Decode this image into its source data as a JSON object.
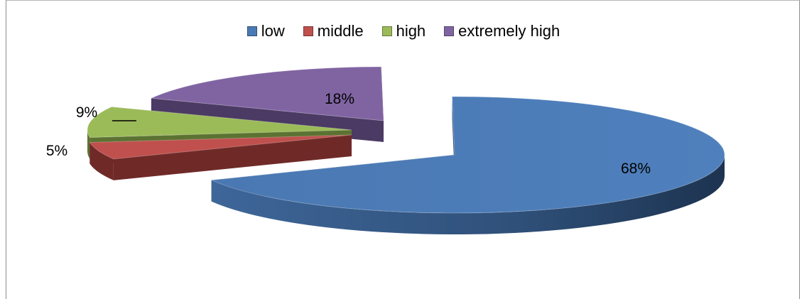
{
  "chart_data": {
    "type": "pie",
    "variant": "3d-exploded",
    "title": "",
    "legend_position": "top",
    "categories": [
      "low",
      "middle",
      "high",
      "extremely high"
    ],
    "values": [
      68,
      5,
      9,
      18
    ],
    "value_unit": "%",
    "labels": [
      "68%",
      "5%",
      "9%",
      "18%"
    ],
    "colors": [
      "#4a7ab5",
      "#c0504d",
      "#9bbb59",
      "#8064a2"
    ],
    "side_colors": [
      "#2e4f78",
      "#6f2a28",
      "#5c7232",
      "#4b3a63"
    ]
  }
}
